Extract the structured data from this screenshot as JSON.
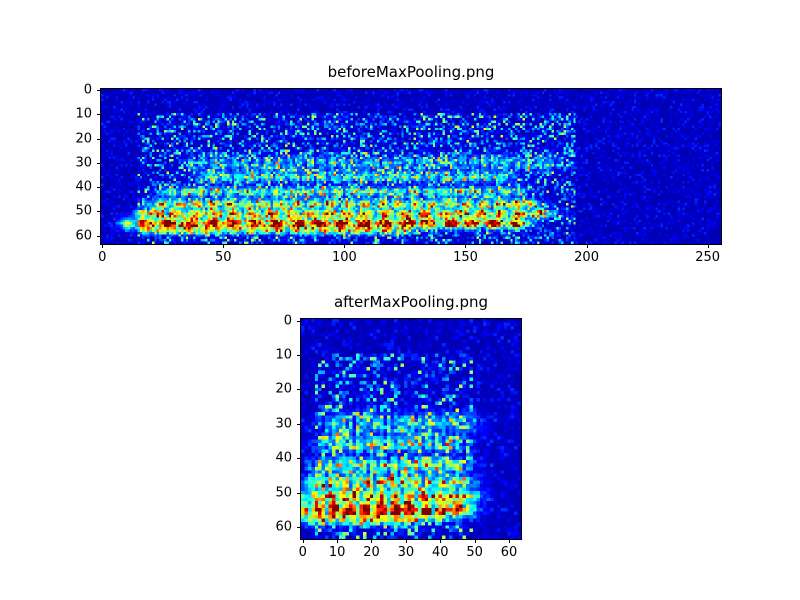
{
  "chart_data": [
    {
      "type": "heatmap",
      "title": "beforeMaxPooling.png",
      "colormap": "jet",
      "cols": 256,
      "rows": 64,
      "x_range": [
        0,
        255
      ],
      "y_range": [
        0,
        63
      ],
      "x_ticks": [
        0,
        50,
        100,
        150,
        200,
        250
      ],
      "y_ticks": [
        0,
        10,
        20,
        30,
        40,
        50,
        60
      ],
      "seed": 42,
      "base": 0.05,
      "noise": 0.12,
      "noise_region": {
        "x0": 15,
        "x1": 195,
        "y0": 10,
        "y1": 63,
        "amp": 0.5
      },
      "bands": [
        {
          "row": 30,
          "sigma": 2.5,
          "amp": 0.3,
          "x0": 40,
          "x1": 185,
          "freq": 0.7,
          "phase": 1.0
        },
        {
          "row": 36,
          "sigma": 1.5,
          "amp": 0.45,
          "x0": 45,
          "x1": 165,
          "freq": 0.55,
          "phase": 2.0
        },
        {
          "row": 42,
          "sigma": 1.4,
          "amp": 0.55,
          "x0": 30,
          "x1": 170,
          "freq": 0.5,
          "phase": 0.0
        },
        {
          "row": 47,
          "sigma": 1.3,
          "amp": 0.78,
          "x0": 25,
          "x1": 175,
          "freq": 0.45,
          "phase": 3.0
        },
        {
          "row": 51,
          "sigma": 1.2,
          "amp": 0.92,
          "x0": 20,
          "x1": 180,
          "freq": 0.4,
          "phase": 5.0
        },
        {
          "row": 55,
          "sigma": 1.5,
          "amp": 1.28,
          "x0": 15,
          "x1": 170,
          "freq": 0.35,
          "phase": 1.5
        },
        {
          "row": 58,
          "sigma": 1.2,
          "amp": 0.6,
          "x0": 20,
          "x1": 120,
          "freq": 0.5,
          "phase": 2.5
        }
      ]
    },
    {
      "type": "heatmap",
      "title": "afterMaxPooling.png",
      "colormap": "jet",
      "cols": 64,
      "rows": 64,
      "x_range": [
        0,
        63
      ],
      "y_range": [
        0,
        63
      ],
      "x_ticks": [
        0,
        10,
        20,
        30,
        40,
        50,
        60
      ],
      "y_ticks": [
        0,
        10,
        20,
        30,
        40,
        50,
        60
      ],
      "seed": 7,
      "base": 0.05,
      "noise": 0.12,
      "noise_region": {
        "x0": 4,
        "x1": 49,
        "y0": 10,
        "y1": 63,
        "amp": 0.5
      },
      "bands": [
        {
          "row": 30,
          "sigma": 2.5,
          "amp": 0.32,
          "x0": 10,
          "x1": 46,
          "freq": 1.4,
          "phase": 1.0
        },
        {
          "row": 36,
          "sigma": 1.5,
          "amp": 0.48,
          "x0": 11,
          "x1": 41,
          "freq": 1.1,
          "phase": 2.0
        },
        {
          "row": 42,
          "sigma": 1.4,
          "amp": 0.6,
          "x0": 8,
          "x1": 43,
          "freq": 1.0,
          "phase": 0.0
        },
        {
          "row": 47,
          "sigma": 1.3,
          "amp": 0.82,
          "x0": 6,
          "x1": 44,
          "freq": 0.9,
          "phase": 3.0
        },
        {
          "row": 51,
          "sigma": 1.2,
          "amp": 0.95,
          "x0": 5,
          "x1": 45,
          "freq": 0.8,
          "phase": 5.0
        },
        {
          "row": 55,
          "sigma": 1.5,
          "amp": 1.3,
          "x0": 4,
          "x1": 43,
          "freq": 0.7,
          "phase": 1.5
        },
        {
          "row": 58,
          "sigma": 1.2,
          "amp": 0.62,
          "x0": 5,
          "x1": 30,
          "freq": 1.0,
          "phase": 2.5
        }
      ]
    }
  ]
}
